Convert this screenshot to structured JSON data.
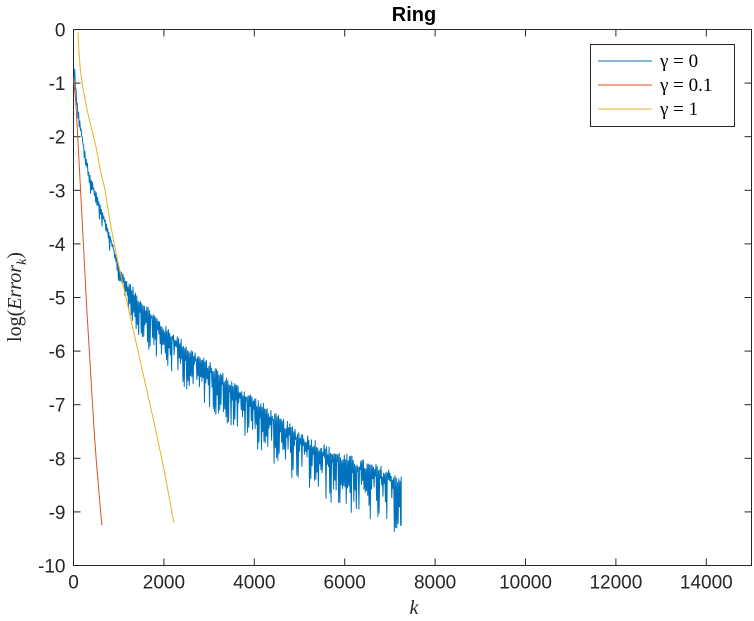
{
  "chart_data": {
    "type": "line",
    "title": "Ring",
    "xlabel": "k",
    "ylabel_pre": "log(",
    "ylabel_main": "Error",
    "ylabel_sub": "k",
    "ylabel_post": ")",
    "xlim": [
      0,
      15000
    ],
    "ylim": [
      -10,
      0
    ],
    "xticks": [
      0,
      2000,
      4000,
      6000,
      8000,
      10000,
      12000,
      14000
    ],
    "xtick_labels": [
      "0",
      "2000",
      "4000",
      "6000",
      "8000",
      "10000",
      "12000",
      "14000"
    ],
    "yticks": [
      0,
      -1,
      -2,
      -3,
      -4,
      -5,
      -6,
      -7,
      -8,
      -9,
      -10
    ],
    "ytick_labels": [
      "0",
      "-1",
      "-2",
      "-3",
      "-4",
      "-5",
      "-6",
      "-7",
      "-8",
      "-9",
      "-10"
    ],
    "grid": false,
    "legend_position": "top-right",
    "series": [
      {
        "name": "γ = 0",
        "color": "#0072BD",
        "noisy": true,
        "x": [
          0,
          30,
          60,
          100,
          150,
          200,
          250,
          300,
          350,
          400,
          500,
          600,
          700,
          800,
          900,
          1000,
          1200,
          1400,
          1600,
          1800,
          2000,
          2300,
          2600,
          3000,
          3500,
          4000,
          4500,
          5000,
          5500,
          6000,
          6500,
          7000,
          7250
        ],
        "y": [
          -1.0,
          -0.75,
          -1.2,
          -1.5,
          -1.8,
          -2.05,
          -2.3,
          -2.5,
          -2.75,
          -2.85,
          -3.1,
          -3.35,
          -3.6,
          -3.85,
          -4.15,
          -4.45,
          -4.8,
          -5.05,
          -5.25,
          -5.45,
          -5.65,
          -5.85,
          -6.1,
          -6.35,
          -6.7,
          -7.0,
          -7.35,
          -7.65,
          -7.9,
          -8.1,
          -8.25,
          -8.4,
          -8.5
        ]
      },
      {
        "name": "γ = 0.1",
        "color": "#D95319",
        "noisy": false,
        "x": [
          0,
          50,
          100,
          150,
          200,
          250,
          300,
          350,
          400,
          450,
          500,
          550,
          600,
          630
        ],
        "y": [
          -0.9,
          -1.35,
          -2.1,
          -2.9,
          -3.7,
          -4.5,
          -5.3,
          -6.0,
          -6.7,
          -7.4,
          -8.0,
          -8.5,
          -9.0,
          -9.25
        ]
      },
      {
        "name": "γ = 1",
        "color": "#EDB120",
        "noisy": false,
        "x": [
          100,
          120,
          150,
          200,
          300,
          400,
          500,
          600,
          700,
          800,
          900,
          1000,
          1200,
          1400,
          1600,
          1800,
          2000,
          2100,
          2220
        ],
        "y": [
          -0.05,
          -0.4,
          -0.75,
          -1.05,
          -1.5,
          -1.85,
          -2.2,
          -2.65,
          -3.0,
          -3.55,
          -4.0,
          -4.4,
          -5.15,
          -5.9,
          -6.65,
          -7.4,
          -8.2,
          -8.65,
          -9.2
        ]
      }
    ]
  }
}
